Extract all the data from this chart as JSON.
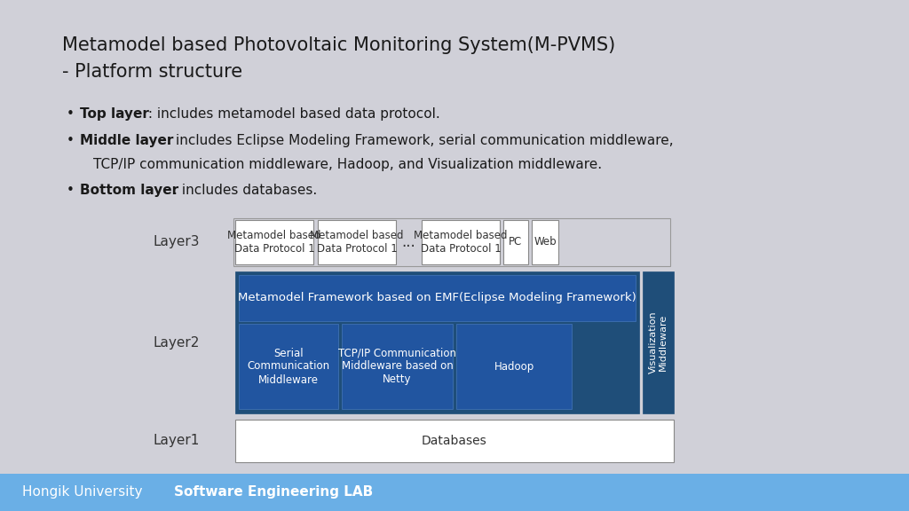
{
  "title_line1": "Metamodel based Photovoltaic Monitoring System(M-PVMS)",
  "title_line2": "- Platform structure",
  "bg_color": "#d0d0d8",
  "footer_color": "#6aafe6",
  "footer_text_normal": "Hongik University ",
  "footer_text_bold": "Software Engineering LAB",
  "bullet_items": [
    {
      "bold": "Top layer",
      "normal": " : includes metamodel based data protocol."
    },
    {
      "bold": "Middle layer",
      "normal": " : includes Eclipse Modeling Framework, serial communication middleware,\n       TCP/IP communication middleware, Hadoop, and Visualization middleware."
    },
    {
      "bold": "Bottom layer",
      "normal": " : includes databases."
    }
  ],
  "dark_blue": "#1f4e79",
  "medium_blue": "#2e6da4",
  "layer_label_color": "#333333",
  "box_outline_color": "#888888",
  "white_box_color": "#ffffff",
  "dark_box_color": "#1f4e79",
  "layer3_boxes": [
    {
      "text": "Metamodel based\nData Protocol 1"
    },
    {
      "text": "Metamodel based\nData Protocol 1"
    },
    {
      "text": "..."
    },
    {
      "text": "Metamodel based\nData Protocol 1"
    },
    {
      "text": "PC"
    },
    {
      "text": "Web"
    }
  ],
  "layer2_top_text": "Metamodel Framework based on EMF(Eclipse Modeling Framework)",
  "layer2_bottom_boxes": [
    {
      "text": "Serial\nCommunication\nMiddleware"
    },
    {
      "text": "TCP/IP Communication\nMiddleware based on\nNetty"
    },
    {
      "text": "Hadoop"
    }
  ],
  "layer2_right_text": "Visualization\nMiddleware",
  "layer1_text": "Databases"
}
